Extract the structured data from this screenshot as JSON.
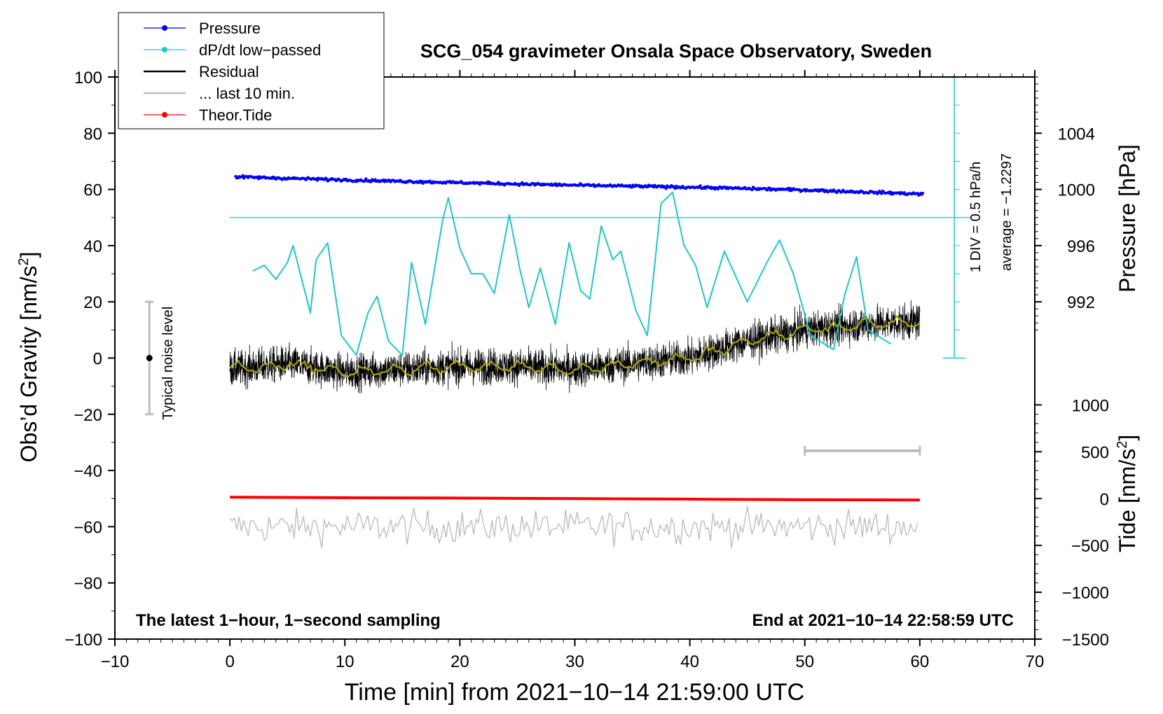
{
  "chart_data": {
    "type": "line",
    "title": "SCG_054 gravimeter Onsala Space Observatory, Sweden",
    "xlabel": "Time [min] from 2021−10−14 21:59:00 UTC",
    "ylabel_left": "Obs’d Gravity [nm/s²]",
    "ylabel_left_main": "Obs’d Gravity [nm/s",
    "ylabel_left_sup": "2",
    "ylabel_left_end": "]",
    "ylabel_pressure": "Pressure [hPa]",
    "ylabel_tide": "Tide [nm/s²]",
    "ylabel_tide_main": "Tide [nm/s",
    "ylabel_tide_sup": "2",
    "ylabel_tide_end": "]",
    "xlim": [
      -10,
      70
    ],
    "ylim": [
      -100,
      100
    ],
    "x_ticks": [
      -10,
      0,
      10,
      20,
      30,
      40,
      50,
      60,
      70
    ],
    "x_tick_labels": [
      "−10",
      "0",
      "10",
      "20",
      "30",
      "40",
      "50",
      "60",
      "70"
    ],
    "y_ticks": [
      -100,
      -80,
      -60,
      -40,
      -20,
      0,
      20,
      40,
      60,
      80,
      100
    ],
    "y_tick_labels": [
      "−100",
      "−80",
      "−60",
      "−40",
      "−20",
      "0",
      "20",
      "40",
      "60",
      "80",
      "100"
    ],
    "pressure_axis": {
      "ticks": [
        992,
        996,
        1000,
        1004
      ],
      "tick_labels": [
        "992",
        "996",
        "1000",
        "1004"
      ],
      "tick_positions_left_units": [
        20,
        40,
        60,
        80
      ]
    },
    "tide_axis": {
      "ticks": [
        -1500,
        -1000,
        -500,
        0,
        500,
        1000
      ],
      "tick_labels": [
        "−1500",
        "−1000",
        "−500",
        "0",
        "500",
        "1000"
      ],
      "tick_positions_left_units": [
        -100,
        -83.33,
        -66.67,
        -50,
        -33.33,
        -16.67
      ]
    },
    "legend": {
      "placement": "top-left",
      "entries": [
        {
          "label": "Pressure",
          "color": "#0000ff",
          "marker": true
        },
        {
          "label": "dP/dt low−passed",
          "color": "#1cc8c8",
          "marker": true
        },
        {
          "label": "Residual",
          "color": "#000000",
          "marker": false
        },
        {
          "label": "... last 10 min.",
          "color": "#bdbdbd",
          "marker": false
        },
        {
          "label": "Theor.Tide",
          "color": "#ff0000",
          "marker": true
        }
      ]
    },
    "annotations": {
      "bottom_left": "The latest 1−hour, 1−second sampling",
      "bottom_right": "End at 2021−10−14 22:58:59 UTC",
      "noise_label": "Typical noise level",
      "noise_bar": {
        "x": -7,
        "center": 0,
        "half_range": 20
      },
      "dpdt_scale": "1 DIV = 0.5 hPa/h",
      "dpdt_average": "average = −1.2297",
      "dpdt_scale_axis": {
        "x": 63,
        "from": 0,
        "to": 100,
        "step": 10
      },
      "dpdt_zero_line": 50,
      "window_bar": {
        "from": 50,
        "to": 60,
        "y": -33
      }
    },
    "series": [
      {
        "name": "Pressure",
        "color": "#0000ff",
        "style": "dots",
        "x": [
          0,
          10,
          20,
          30,
          40,
          50,
          60
        ],
        "y": [
          64.5,
          63.4,
          62.4,
          61.5,
          60.8,
          59.8,
          58.4
        ]
      },
      {
        "name": "dP/dt low−passed",
        "color": "#1cc8c8",
        "style": "line",
        "x": [
          2,
          3,
          4,
          5,
          5.5,
          7,
          7.5,
          8.5,
          9.7,
          11,
          12,
          12.8,
          13.8,
          15,
          15.8,
          17,
          18.5,
          19,
          20,
          21,
          22,
          23,
          24.3,
          25.2,
          26,
          27,
          28.3,
          29.5,
          30.5,
          31.3,
          32.3,
          33.3,
          34,
          35.3,
          36.3,
          37.5,
          38.5,
          39.5,
          40.5,
          41.5,
          43,
          45,
          46.7,
          47.8,
          49,
          50.5,
          52.5,
          53.5,
          54.5,
          55.5,
          57.5
        ],
        "y": [
          31,
          33,
          28,
          34,
          40,
          16,
          35,
          41,
          8,
          1,
          16,
          22,
          6,
          1,
          34,
          12,
          49,
          57,
          39,
          30,
          30,
          23,
          51,
          32,
          18,
          32,
          12,
          41,
          24,
          21,
          47,
          35,
          38,
          17,
          8,
          55,
          59,
          40,
          33,
          18,
          38,
          20,
          34,
          42,
          30,
          8,
          3,
          23,
          36,
          10,
          5
        ]
      },
      {
        "name": "Residual",
        "color": "#000000",
        "style": "noisy-line",
        "x": [
          0,
          5,
          10,
          15,
          20,
          25,
          30,
          35,
          40,
          45,
          50,
          55,
          60
        ],
        "y": [
          -4,
          -2,
          -5,
          -4,
          -3,
          -3,
          -4,
          -2,
          0,
          6,
          10,
          12,
          13
        ]
      },
      {
        "name": "Residual smoothed",
        "color": "#b0b000",
        "style": "line",
        "x": [
          0,
          5,
          10,
          15,
          20,
          25,
          30,
          35,
          40,
          45,
          50,
          55,
          60
        ],
        "y": [
          -4,
          -2,
          -5,
          -4,
          -3,
          -3,
          -4,
          -2,
          0,
          6,
          10,
          12,
          13
        ]
      },
      {
        "name": "... last 10 min.",
        "color": "#bdbdbd",
        "style": "noisy-line",
        "x": [
          0,
          60
        ],
        "y": [
          -60,
          -60
        ]
      },
      {
        "name": "Theor.Tide",
        "color": "#ff0000",
        "style": "thick-line",
        "x": [
          0,
          10,
          20,
          30,
          40,
          50,
          60
        ],
        "y": [
          -49.5,
          -49.7,
          -49.8,
          -50.0,
          -50.2,
          -50.4,
          -50.5
        ]
      }
    ]
  }
}
